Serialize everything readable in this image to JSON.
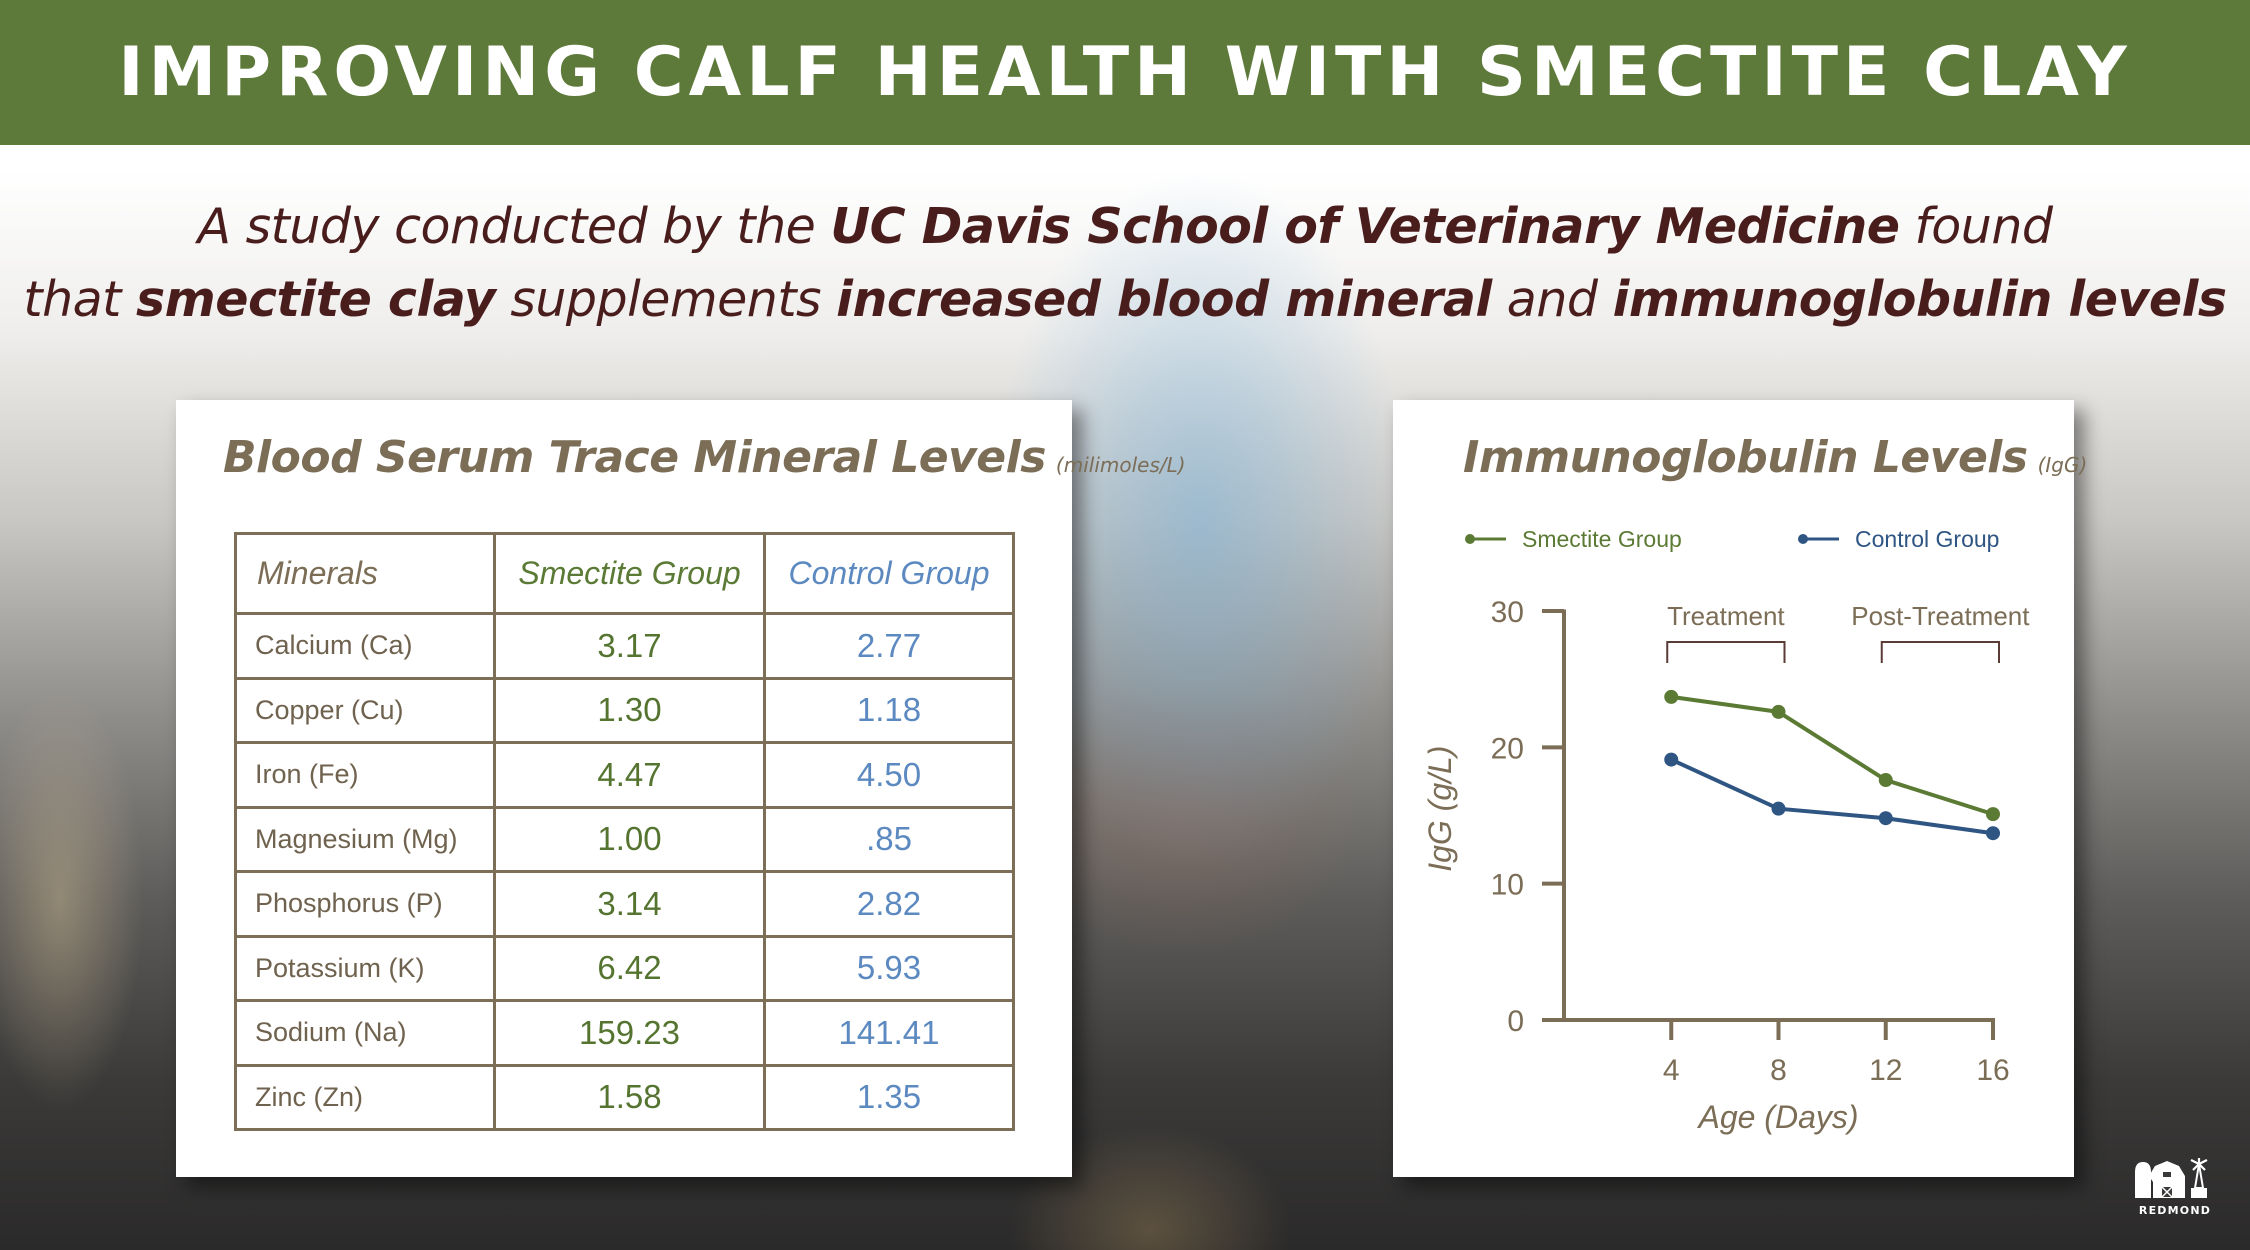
{
  "header": {
    "title": "IMPROVING CALF HEALTH WITH SMECTITE CLAY"
  },
  "subtitle": {
    "line1": [
      {
        "text": "A study conducted by the ",
        "bold": false
      },
      {
        "text": "UC Davis School of Veterinary Medicine",
        "bold": true
      },
      {
        "text": " found",
        "bold": false
      }
    ],
    "line2": [
      {
        "text": "that ",
        "bold": false
      },
      {
        "text": "smectite clay",
        "bold": true
      },
      {
        "text": " supplements ",
        "bold": false
      },
      {
        "text": "increased blood mineral",
        "bold": true
      },
      {
        "text": " and ",
        "bold": false
      },
      {
        "text": "immunoglobulin levels",
        "bold": true
      }
    ]
  },
  "mineral_table": {
    "title": "Blood Serum Trace Mineral Levels",
    "unit": "(milimoles/L)",
    "columns": [
      "Minerals",
      "Smectite Group",
      "Control Group"
    ],
    "rows": [
      {
        "mineral": "Calcium (Ca)",
        "smectite": "3.17",
        "control": "2.77"
      },
      {
        "mineral": "Copper (Cu)",
        "smectite": "1.30",
        "control": "1.18"
      },
      {
        "mineral": "Iron (Fe)",
        "smectite": "4.47",
        "control": "4.50"
      },
      {
        "mineral": "Magnesium (Mg)",
        "smectite": "1.00",
        "control": ".85"
      },
      {
        "mineral": "Phosphorus (P)",
        "smectite": "3.14",
        "control": "2.82"
      },
      {
        "mineral": "Potassium (K)",
        "smectite": "6.42",
        "control": "5.93"
      },
      {
        "mineral": "Sodium (Na)",
        "smectite": "159.23",
        "control": "141.41"
      },
      {
        "mineral": "Zinc (Zn)",
        "smectite": "1.58",
        "control": "1.35"
      }
    ]
  },
  "chart_data": {
    "type": "line",
    "title": "Immunoglobulin Levels",
    "title_unit": "(IgG)",
    "xlabel": "Age (Days)",
    "ylabel": "IgG (g/L)",
    "x": [
      4,
      8,
      12,
      16
    ],
    "x_ticks": [
      "4",
      "8",
      "12",
      "16"
    ],
    "y_ticks": [
      "0",
      "10",
      "20",
      "30"
    ],
    "ylim": [
      0,
      30
    ],
    "xlim": [
      0,
      16
    ],
    "grid": false,
    "legend_position": "top",
    "series": [
      {
        "name": "Smectite Group",
        "color": "#5b7a34",
        "values": [
          23.7,
          22.6,
          17.6,
          15.1
        ]
      },
      {
        "name": "Control Group",
        "color": "#2f5583",
        "values": [
          19.1,
          15.5,
          14.8,
          13.7
        ]
      }
    ],
    "annotations": [
      {
        "label": "Treatment",
        "x_range": [
          4,
          8
        ]
      },
      {
        "label": "Post-Treatment",
        "x_range": [
          12,
          16
        ]
      }
    ]
  },
  "colors": {
    "header_bg": "#5e7a3a",
    "smectite": "#5a7a35",
    "control_table": "#5b89c0",
    "control_chart": "#2f5583",
    "axis": "#7b6d56",
    "subtitle_text": "#4a1d1d"
  },
  "logo": {
    "text": "REDMOND",
    "icon": "barn-windmill-logo-icon"
  }
}
